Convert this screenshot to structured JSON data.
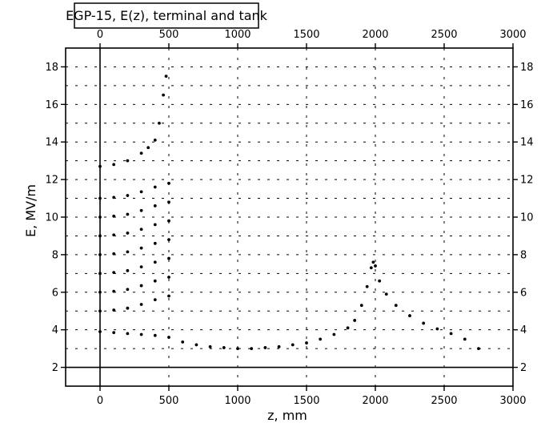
{
  "chart_data": {
    "type": "scatter",
    "title": "EGP-15, E(z), terminal and tank",
    "xlabel": "z, mm",
    "ylabel": "E, MV/m",
    "xlim": [
      -250,
      3000
    ],
    "ylim": [
      1,
      19
    ],
    "x_ticks": [
      0,
      500,
      1000,
      1500,
      2000,
      2500,
      3000
    ],
    "y_ticks": [
      2,
      4,
      6,
      8,
      10,
      12,
      14,
      16,
      18
    ],
    "grid": true,
    "grid_style": "dashed",
    "mirror_axes": true,
    "legend": "none",
    "colors": {
      "points": "#000000",
      "grid": "#000000",
      "background": "#ffffff"
    },
    "series": [
      {
        "values": [
          {
            "x": 0,
            "y": 3.9
          },
          {
            "x": 100,
            "y": 3.85
          },
          {
            "x": 200,
            "y": 3.8
          },
          {
            "x": 300,
            "y": 3.75
          },
          {
            "x": 400,
            "y": 3.7
          },
          {
            "x": 500,
            "y": 3.6
          },
          {
            "x": 600,
            "y": 3.35
          },
          {
            "x": 700,
            "y": 3.2
          },
          {
            "x": 800,
            "y": 3.1
          },
          {
            "x": 900,
            "y": 3.05
          },
          {
            "x": 1000,
            "y": 3.0
          },
          {
            "x": 1100,
            "y": 3.0
          },
          {
            "x": 1200,
            "y": 3.05
          },
          {
            "x": 1300,
            "y": 3.1
          },
          {
            "x": 1400,
            "y": 3.2
          },
          {
            "x": 1500,
            "y": 3.3
          },
          {
            "x": 1600,
            "y": 3.5
          },
          {
            "x": 1700,
            "y": 3.75
          },
          {
            "x": 1800,
            "y": 4.1
          },
          {
            "x": 1850,
            "y": 4.5
          },
          {
            "x": 1900,
            "y": 5.3
          },
          {
            "x": 1940,
            "y": 6.3
          },
          {
            "x": 1970,
            "y": 7.3
          },
          {
            "x": 1985,
            "y": 7.6
          },
          {
            "x": 2000,
            "y": 7.4
          },
          {
            "x": 2030,
            "y": 6.6
          },
          {
            "x": 2080,
            "y": 5.9
          },
          {
            "x": 2150,
            "y": 5.3
          },
          {
            "x": 2250,
            "y": 4.75
          },
          {
            "x": 2350,
            "y": 4.35
          },
          {
            "x": 2450,
            "y": 4.05
          },
          {
            "x": 2550,
            "y": 3.8
          },
          {
            "x": 2650,
            "y": 3.5
          },
          {
            "x": 2750,
            "y": 3.0
          }
        ]
      },
      {
        "values": [
          {
            "x": 0,
            "y": 5.0
          },
          {
            "x": 100,
            "y": 5.05
          },
          {
            "x": 200,
            "y": 5.15
          },
          {
            "x": 300,
            "y": 5.35
          },
          {
            "x": 400,
            "y": 5.6
          },
          {
            "x": 500,
            "y": 5.8
          },
          {
            "x": 0,
            "y": 6.0
          },
          {
            "x": 100,
            "y": 6.05
          },
          {
            "x": 200,
            "y": 6.15
          },
          {
            "x": 300,
            "y": 6.35
          },
          {
            "x": 400,
            "y": 6.6
          },
          {
            "x": 500,
            "y": 6.8
          },
          {
            "x": 0,
            "y": 7.0
          },
          {
            "x": 100,
            "y": 7.05
          },
          {
            "x": 200,
            "y": 7.15
          },
          {
            "x": 300,
            "y": 7.35
          },
          {
            "x": 400,
            "y": 7.6
          },
          {
            "x": 500,
            "y": 7.8
          },
          {
            "x": 0,
            "y": 8.0
          },
          {
            "x": 100,
            "y": 8.05
          },
          {
            "x": 200,
            "y": 8.15
          },
          {
            "x": 300,
            "y": 8.35
          },
          {
            "x": 400,
            "y": 8.6
          },
          {
            "x": 500,
            "y": 8.8
          },
          {
            "x": 0,
            "y": 9.0
          },
          {
            "x": 100,
            "y": 9.05
          },
          {
            "x": 200,
            "y": 9.15
          },
          {
            "x": 300,
            "y": 9.35
          },
          {
            "x": 400,
            "y": 9.6
          },
          {
            "x": 500,
            "y": 9.8
          },
          {
            "x": 0,
            "y": 10.0
          },
          {
            "x": 100,
            "y": 10.05
          },
          {
            "x": 200,
            "y": 10.15
          },
          {
            "x": 300,
            "y": 10.35
          },
          {
            "x": 400,
            "y": 10.6
          },
          {
            "x": 500,
            "y": 10.8
          },
          {
            "x": 0,
            "y": 11.0
          },
          {
            "x": 100,
            "y": 11.05
          },
          {
            "x": 200,
            "y": 11.15
          },
          {
            "x": 300,
            "y": 11.35
          },
          {
            "x": 400,
            "y": 11.6
          },
          {
            "x": 500,
            "y": 11.8
          },
          {
            "x": 0,
            "y": 12.7
          },
          {
            "x": 100,
            "y": 12.8
          },
          {
            "x": 200,
            "y": 13.0
          },
          {
            "x": 300,
            "y": 13.4
          },
          {
            "x": 350,
            "y": 13.7
          },
          {
            "x": 400,
            "y": 14.1
          },
          {
            "x": 430,
            "y": 15.0
          },
          {
            "x": 460,
            "y": 16.5
          },
          {
            "x": 480,
            "y": 17.5
          }
        ]
      }
    ]
  }
}
